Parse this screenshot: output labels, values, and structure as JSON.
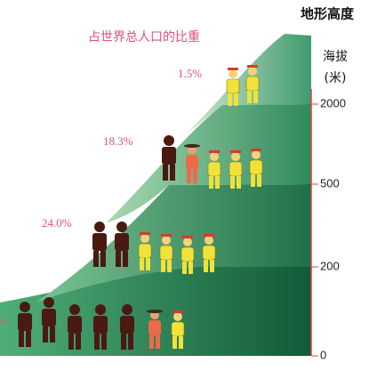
{
  "header": {
    "title": "地形高度",
    "subtitle": "占世界总人口的比重"
  },
  "axis": {
    "label": "海拔",
    "unit": "(米)",
    "ticks": [
      "2000",
      "500",
      "200",
      "0"
    ]
  },
  "tiers": [
    {
      "share": "1.5%"
    },
    {
      "share": "18.3%"
    },
    {
      "share": "24.0%"
    },
    {
      "share": "%"
    }
  ]
}
